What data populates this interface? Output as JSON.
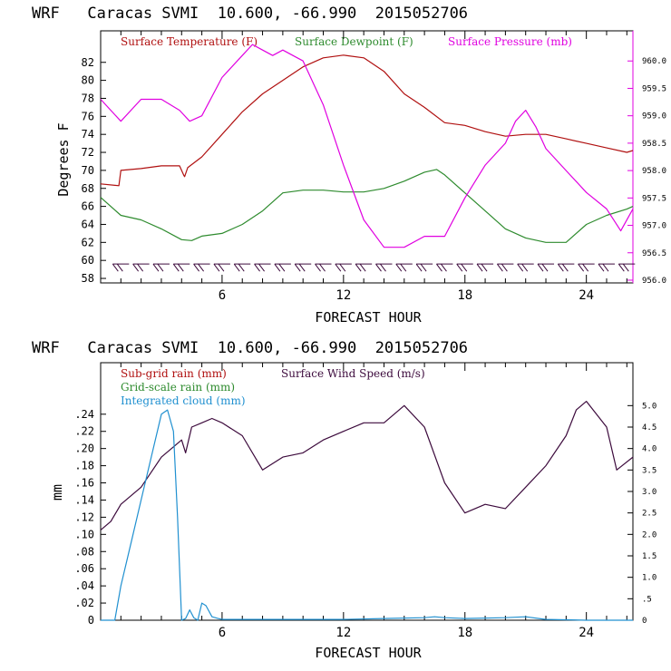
{
  "chart_data": [
    {
      "type": "line",
      "title": "WRF   Caracas SVMI  10.600, -66.990  2015052706",
      "xlabel": "FORECAST HOUR",
      "ylabel": "Degrees F",
      "xlim": [
        0,
        26.3
      ],
      "ylim": [
        57.5,
        85.5
      ],
      "xticks": [
        6,
        12,
        18,
        24
      ],
      "yticks": [
        58,
        60,
        62,
        64,
        66,
        68,
        70,
        72,
        74,
        76,
        78,
        80,
        82
      ],
      "y2lim": [
        955.95,
        960.55
      ],
      "y2ticks": [
        "956.0",
        "956.5",
        "957.0",
        "957.5",
        "958.0",
        "958.5",
        "959.0",
        "959.5",
        "960.0"
      ],
      "y2tick_values": [
        956.0,
        956.5,
        957.0,
        957.5,
        958.0,
        958.5,
        959.0,
        959.5,
        960.0
      ],
      "legend": [
        {
          "label": "Surface Temperature (F)",
          "color": "#b01010"
        },
        {
          "label": "Surface Dewpoint (F)",
          "color": "#2e8b2e"
        },
        {
          "label": "Surface Pressure (mb)",
          "color": "#e000e0"
        }
      ],
      "series": [
        {
          "name": "Surface Temperature (F)",
          "axis": "left",
          "color": "#b01010",
          "x": [
            0,
            0.9,
            1.0,
            2,
            3,
            3.9,
            4.1,
            4.15,
            4.3,
            5,
            6,
            7,
            8,
            9,
            10,
            11,
            12,
            13,
            14,
            15,
            16,
            17,
            18,
            19,
            20,
            21,
            22,
            23,
            24,
            25,
            26,
            26.3
          ],
          "y": [
            68.5,
            68.3,
            70.0,
            70.2,
            70.5,
            70.5,
            69.5,
            69.3,
            70.3,
            71.5,
            74.0,
            76.5,
            78.5,
            80.0,
            81.5,
            82.5,
            82.8,
            82.5,
            81.0,
            78.5,
            77.0,
            75.3,
            75.0,
            74.3,
            73.8,
            74.0,
            74.0,
            73.5,
            73.0,
            72.5,
            72.0,
            72.2
          ]
        },
        {
          "name": "Surface Dewpoint (F)",
          "axis": "left",
          "color": "#2e8b2e",
          "x": [
            0,
            1,
            2,
            3,
            4,
            4.5,
            5,
            6,
            7,
            8,
            9,
            10,
            11,
            12,
            13,
            14,
            15,
            16,
            16.6,
            17,
            18,
            19,
            20,
            21,
            22,
            23,
            24,
            25,
            26,
            26.3
          ],
          "y": [
            67.0,
            65.0,
            64.5,
            63.5,
            62.3,
            62.2,
            62.7,
            63.0,
            64.0,
            65.5,
            67.5,
            67.8,
            67.8,
            67.6,
            67.6,
            68.0,
            68.8,
            69.8,
            70.1,
            69.5,
            67.5,
            65.5,
            63.5,
            62.5,
            62.0,
            62.0,
            64.0,
            65.0,
            65.7,
            66.0
          ]
        },
        {
          "name": "Surface Pressure (mb)",
          "axis": "right",
          "color": "#e000e0",
          "x": [
            0,
            1,
            2,
            3,
            3.9,
            4.4,
            5,
            6,
            7,
            7.5,
            8,
            8.5,
            9,
            9.5,
            10,
            11,
            12,
            13,
            14,
            15,
            16,
            17,
            18,
            19,
            20,
            20.5,
            21,
            21.5,
            22,
            23,
            24,
            25,
            25.7,
            26.3
          ],
          "y": [
            959.3,
            958.9,
            959.3,
            959.3,
            959.1,
            958.9,
            959.0,
            959.7,
            960.1,
            960.3,
            960.2,
            960.1,
            960.2,
            960.1,
            960.0,
            959.2,
            958.1,
            957.1,
            956.6,
            956.6,
            956.8,
            956.8,
            957.5,
            958.1,
            958.5,
            958.9,
            959.1,
            958.8,
            958.4,
            958.0,
            957.6,
            957.3,
            956.9,
            957.3
          ]
        }
      ],
      "wind_barbs_at_hours": [
        1,
        2,
        3,
        4,
        5,
        6,
        7,
        8,
        9,
        10,
        11,
        12,
        13,
        14,
        15,
        16,
        17,
        18,
        19,
        20,
        21,
        22,
        23,
        24,
        25,
        26
      ]
    },
    {
      "type": "line",
      "title": "WRF   Caracas SVMI  10.600, -66.990  2015052706",
      "xlabel": "FORECAST HOUR",
      "ylabel": "mm",
      "xlim": [
        0,
        26.3
      ],
      "ylim": [
        0,
        0.3
      ],
      "xticks": [
        6,
        12,
        18,
        24
      ],
      "yticks": [
        "0",
        ".02",
        ".04",
        ".06",
        ".08",
        ".10",
        ".12",
        ".14",
        ".16",
        ".18",
        ".20",
        ".22",
        ".24"
      ],
      "ytick_values": [
        0,
        0.02,
        0.04,
        0.06,
        0.08,
        0.1,
        0.12,
        0.14,
        0.16,
        0.18,
        0.2,
        0.22,
        0.24
      ],
      "y2lim": [
        0,
        6.0
      ],
      "y2ticks": [
        "0",
        ".5",
        "1.0",
        "1.5",
        "2.0",
        "2.5",
        "3.0",
        "3.5",
        "4.0",
        "4.5",
        "5.0"
      ],
      "y2tick_values": [
        0,
        0.5,
        1.0,
        1.5,
        2.0,
        2.5,
        3.0,
        3.5,
        4.0,
        4.5,
        5.0
      ],
      "legend": [
        {
          "label": "Sub-grid rain (mm)",
          "color": "#b01010"
        },
        {
          "label": "Surface Wind Speed (m/s)",
          "color": "#3c0a3c"
        },
        {
          "label": "Grid-scale rain (mm)",
          "color": "#2e8b2e"
        },
        {
          "label": "Integrated cloud (mm)",
          "color": "#2090d0"
        }
      ],
      "series": [
        {
          "name": "Surface Wind Speed (m/s)",
          "axis": "right",
          "color": "#3c0a3c",
          "x": [
            0,
            0.5,
            1,
            1.5,
            2,
            3,
            3.5,
            4,
            4.2,
            4.5,
            5,
            5.5,
            6,
            7,
            8,
            9,
            10,
            11,
            12,
            13,
            14,
            15,
            16,
            17,
            18,
            19,
            20,
            21,
            22,
            23,
            23.5,
            24,
            25,
            25.5,
            26.3
          ],
          "y": [
            2.1,
            2.3,
            2.7,
            2.9,
            3.1,
            3.8,
            4.0,
            4.2,
            3.9,
            4.5,
            4.6,
            4.7,
            4.6,
            4.3,
            3.5,
            3.8,
            3.9,
            4.2,
            4.4,
            4.6,
            4.6,
            5.0,
            4.5,
            3.2,
            2.5,
            2.7,
            2.6,
            3.1,
            3.6,
            4.3,
            4.9,
            5.1,
            4.5,
            3.5,
            3.8
          ]
        },
        {
          "name": "Integrated cloud (mm)",
          "axis": "left",
          "color": "#2090d0",
          "x": [
            0,
            0.7,
            1,
            1.5,
            2,
            2.5,
            3,
            3.3,
            3.6,
            3.8,
            4,
            4.2,
            4.4,
            4.6,
            4.8,
            5,
            5.2,
            5.5,
            5.8,
            6,
            8,
            10,
            12,
            14,
            16,
            16.5,
            17,
            18,
            20,
            21,
            22,
            24,
            26.3
          ],
          "y": [
            0,
            0,
            0.04,
            0.09,
            0.14,
            0.19,
            0.24,
            0.245,
            0.22,
            0.12,
            0,
            0.002,
            0.012,
            0.003,
            0,
            0.02,
            0.017,
            0.004,
            0.002,
            0.001,
            0.001,
            0.001,
            0.001,
            0.002,
            0.003,
            0.004,
            0.003,
            0.002,
            0.003,
            0.004,
            0.001,
            0,
            0
          ]
        }
      ]
    }
  ]
}
